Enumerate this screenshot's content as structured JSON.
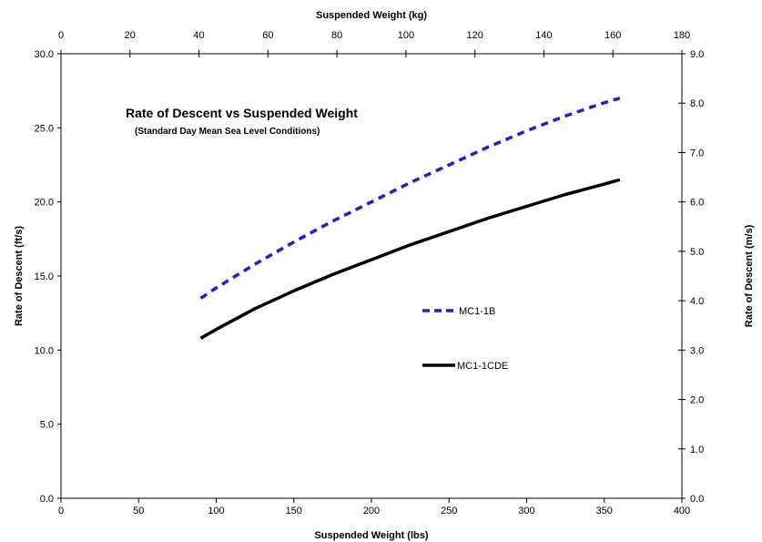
{
  "chart_data": {
    "type": "line",
    "title": "Rate of Descent vs Suspended Weight",
    "subtitle": "(Standard Day Mean Sea Level Conditions)",
    "xlabel": "Suspended Weight (lbs)",
    "ylabel": "Rate of Descent (ft/s)",
    "x2label": "Suspended Weight (kg)",
    "y2label": "Rate of Descent (m/s)",
    "xlim": [
      0,
      400
    ],
    "ylim": [
      0,
      30
    ],
    "x2lim": [
      0,
      180
    ],
    "y2lim": [
      0,
      9
    ],
    "xticks": [
      "0",
      "50",
      "100",
      "150",
      "200",
      "250",
      "300",
      "350",
      "400"
    ],
    "yticks": [
      "0.0",
      "5.0",
      "10.0",
      "15.0",
      "20.0",
      "25.0",
      "30.0"
    ],
    "x2ticks": [
      "0",
      "20",
      "40",
      "60",
      "80",
      "100",
      "120",
      "140",
      "160",
      "180"
    ],
    "y2ticks": [
      "0.0",
      "1.0",
      "2.0",
      "3.0",
      "4.0",
      "5.0",
      "6.0",
      "7.0",
      "8.0",
      "9.0"
    ],
    "grid": false,
    "legend_position": "center-right",
    "series": [
      {
        "name": "MC1-1B",
        "color": "#1f1fd0",
        "style": "dashed",
        "x": [
          90,
          100,
          125,
          150,
          175,
          200,
          225,
          250,
          275,
          300,
          325,
          350,
          360
        ],
        "y": [
          13.5,
          14.2,
          15.8,
          17.3,
          18.7,
          20.0,
          21.3,
          22.5,
          23.7,
          24.8,
          25.8,
          26.7,
          27.0
        ]
      },
      {
        "name": "MC1-1CDE",
        "color": "#000000",
        "style": "solid",
        "x": [
          90,
          100,
          125,
          150,
          175,
          200,
          225,
          250,
          275,
          300,
          325,
          350,
          360
        ],
        "y": [
          10.8,
          11.4,
          12.8,
          14.0,
          15.1,
          16.1,
          17.1,
          18.0,
          18.9,
          19.7,
          20.5,
          21.2,
          21.5
        ]
      }
    ]
  }
}
